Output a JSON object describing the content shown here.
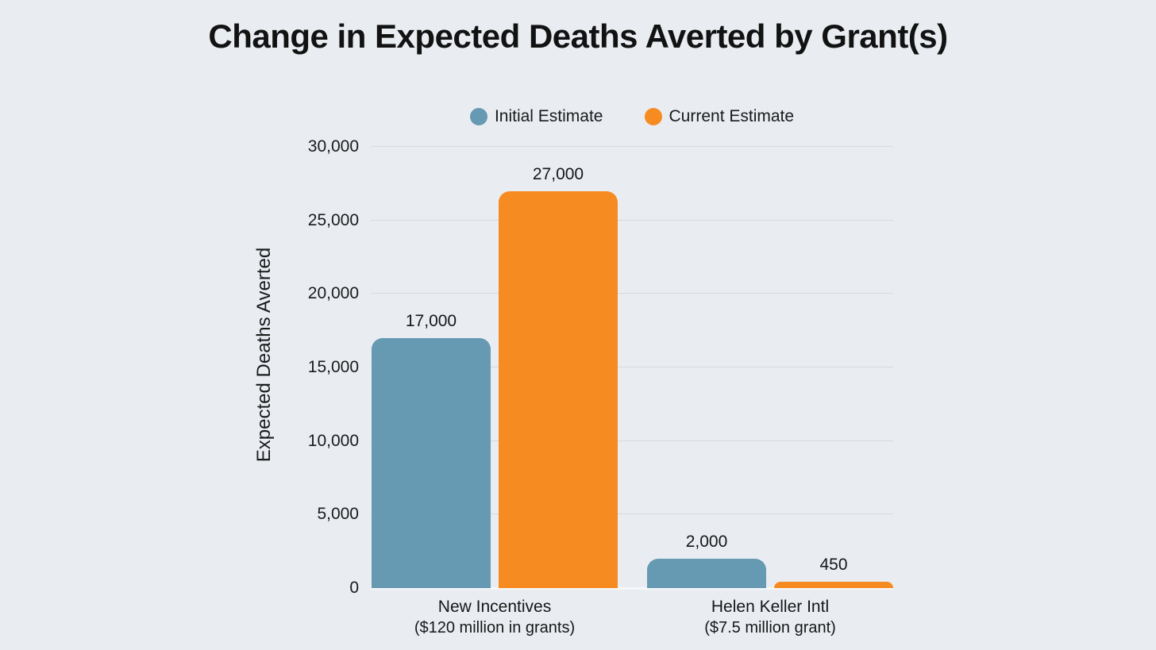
{
  "chart_data": {
    "type": "bar",
    "title": "Change in Expected Deaths Averted by Grant(s)",
    "ylabel": "Expected Deaths Averted",
    "xlabel": "",
    "ylim": [
      0,
      30000
    ],
    "grid": true,
    "legend_position": "top-center",
    "background_color": "#e9edf2",
    "gridline_color": "#d5dade",
    "yticks": [
      {
        "value": 0,
        "label": "0"
      },
      {
        "value": 5000,
        "label": "5,000"
      },
      {
        "value": 10000,
        "label": "10,000"
      },
      {
        "value": 15000,
        "label": "15,000"
      },
      {
        "value": 20000,
        "label": "20,000"
      },
      {
        "value": 25000,
        "label": "25,000"
      },
      {
        "value": 30000,
        "label": "30,000"
      }
    ],
    "categories": [
      {
        "name": "New Incentives",
        "note": "($120 million in grants)"
      },
      {
        "name": "Helen Keller Intl",
        "note": "($7.5 million grant)"
      }
    ],
    "series": [
      {
        "name": "Initial Estimate",
        "color": "#6699b2",
        "values": [
          17000,
          2000
        ],
        "value_labels": [
          "17,000",
          "2,000"
        ]
      },
      {
        "name": "Current Estimate",
        "color": "#f68b21",
        "values": [
          27000,
          450
        ],
        "value_labels": [
          "27,000",
          "450"
        ]
      }
    ]
  }
}
